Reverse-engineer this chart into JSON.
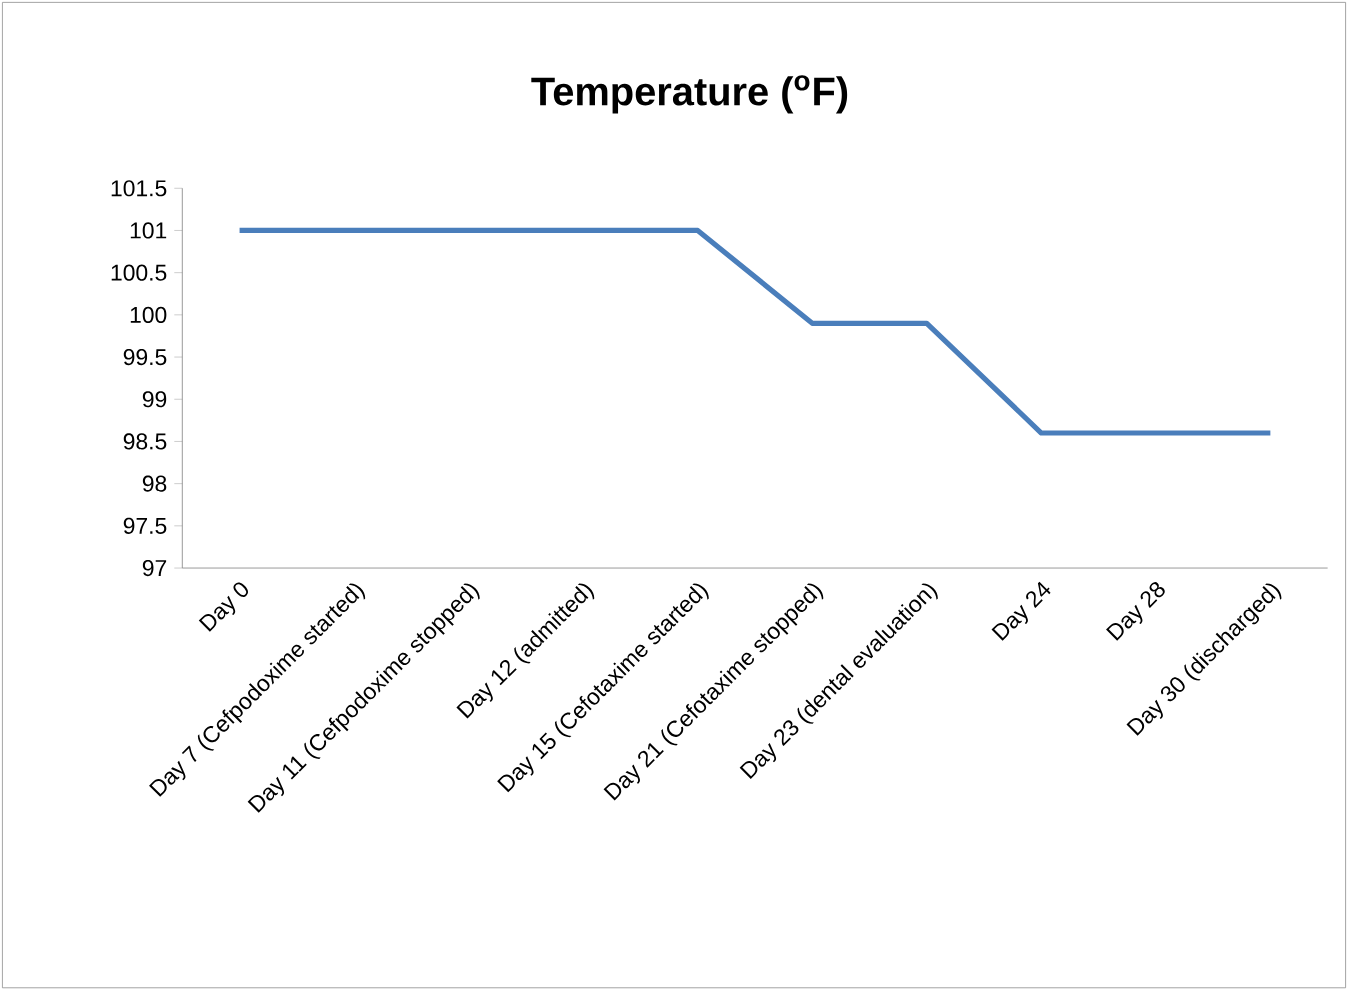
{
  "chart_data": {
    "type": "line",
    "title": "Temperature ($^{o}$F)",
    "categories": [
      "Day 0",
      "Day 7 (Cefpodoxime started)",
      "Day 11 (Cefpodoxime stopped)",
      "Day 12 (admitted)",
      "Day 15 (Cefotaxime started)",
      "Day 21 (Cefotaxime stopped)",
      "Day 23 (dental evaluation)",
      "Day 24",
      "Day 28",
      "Day 30 (discharged)"
    ],
    "values": [
      101,
      101,
      101,
      101,
      101,
      99.9,
      99.9,
      98.6,
      98.6,
      98.6
    ],
    "color": "#4a7ebb",
    "marker": "none",
    "line_style": "solid",
    "ylim": [
      97,
      101.5
    ],
    "yticks": [
      97,
      97.5,
      98,
      98.5,
      99,
      99.5,
      100,
      100.5,
      101,
      101.5
    ]
  }
}
